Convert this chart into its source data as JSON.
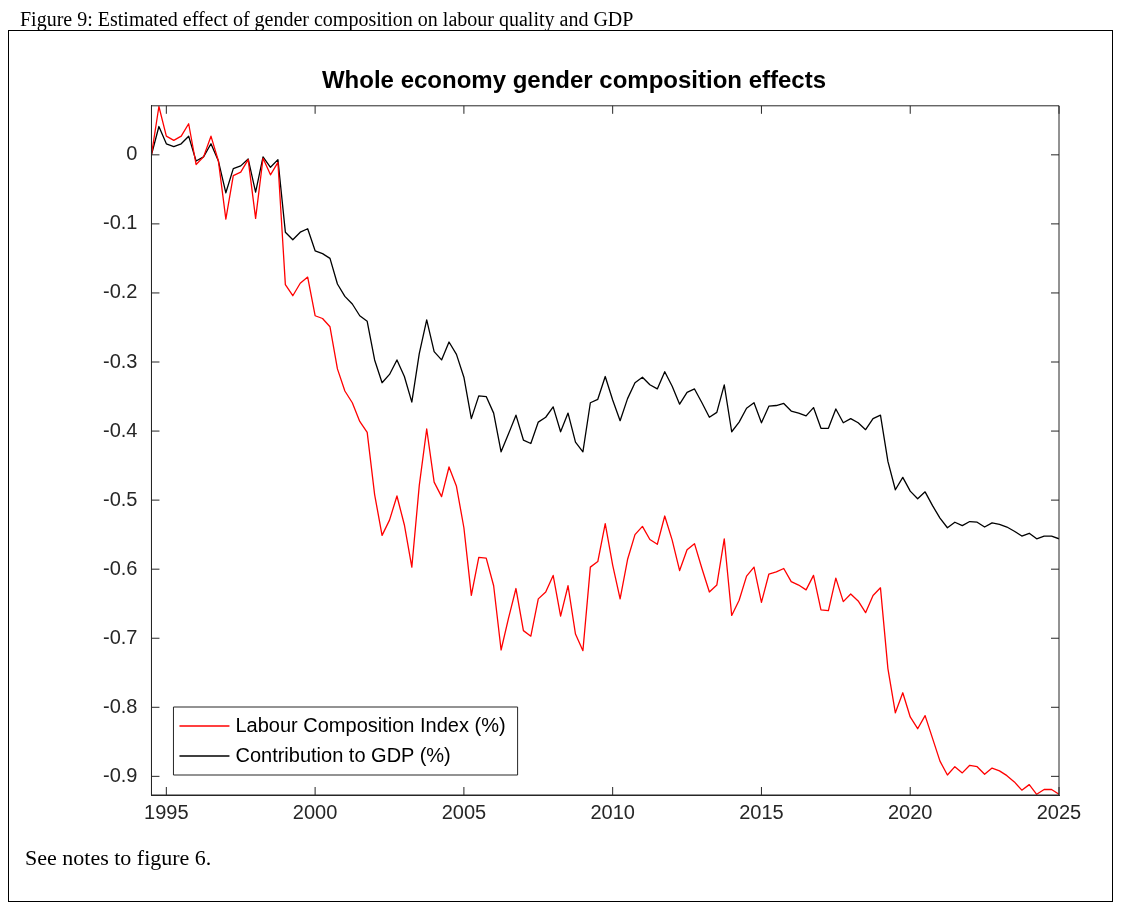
{
  "chart_data": {
    "type": "line",
    "title": "Whole economy gender composition effects",
    "annotations": [
      "Figure 9: Estimated effect of gender composition on labour quality and GDP",
      "See notes to figure 6."
    ],
    "x": [
      1994.5,
      1994.75,
      1995,
      1995.25,
      1995.5,
      1995.75,
      1996,
      1996.25,
      1996.5,
      1996.75,
      1997,
      1997.25,
      1997.5,
      1997.75,
      1998,
      1998.25,
      1998.5,
      1998.75,
      1999,
      1999.25,
      1999.5,
      1999.75,
      2000,
      2000.25,
      2000.5,
      2000.75,
      2001,
      2001.25,
      2001.5,
      2001.75,
      2002,
      2002.25,
      2002.5,
      2002.75,
      2003,
      2003.25,
      2003.5,
      2003.75,
      2004,
      2004.25,
      2004.5,
      2004.75,
      2005,
      2005.25,
      2005.5,
      2005.75,
      2006,
      2006.25,
      2006.5,
      2006.75,
      2007,
      2007.25,
      2007.5,
      2007.75,
      2008,
      2008.25,
      2008.5,
      2008.75,
      2009,
      2009.25,
      2009.5,
      2009.75,
      2010,
      2010.25,
      2010.5,
      2010.75,
      2011,
      2011.25,
      2011.5,
      2011.75,
      2012,
      2012.25,
      2012.5,
      2012.75,
      2013,
      2013.25,
      2013.5,
      2013.75,
      2014,
      2014.25,
      2014.5,
      2014.75,
      2015,
      2015.25,
      2015.5,
      2015.75,
      2016,
      2016.25,
      2016.5,
      2016.75,
      2017,
      2017.25,
      2017.5,
      2017.75,
      2018,
      2018.25,
      2018.5,
      2018.75,
      2019,
      2019.25,
      2019.5,
      2019.75,
      2020,
      2020.25,
      2020.5,
      2020.75,
      2021,
      2021.25,
      2021.5,
      2021.75,
      2022,
      2022.25,
      2022.5,
      2022.75,
      2023,
      2023.25,
      2023.5,
      2023.75,
      2024,
      2024.25,
      2024.5,
      2024.75,
      2025
    ],
    "series": [
      {
        "name": "Labour Composition Index (%)",
        "color": "#ff0000",
        "values": [
          0,
          0.07,
          0.027,
          0.021,
          0.027,
          0.045,
          -0.014,
          -0.003,
          0.027,
          -0.009,
          -0.093,
          -0.03,
          -0.025,
          -0.007,
          -0.092,
          -0.005,
          -0.029,
          -0.011,
          -0.188,
          -0.204,
          -0.186,
          -0.177,
          -0.233,
          -0.237,
          -0.249,
          -0.31,
          -0.342,
          -0.359,
          -0.386,
          -0.402,
          -0.492,
          -0.551,
          -0.529,
          -0.494,
          -0.536,
          -0.597,
          -0.479,
          -0.397,
          -0.474,
          -0.495,
          -0.452,
          -0.48,
          -0.54,
          -0.638,
          -0.583,
          -0.584,
          -0.624,
          -0.717,
          -0.671,
          -0.628,
          -0.689,
          -0.697,
          -0.643,
          -0.633,
          -0.609,
          -0.668,
          -0.624,
          -0.694,
          -0.718,
          -0.597,
          -0.589,
          -0.534,
          -0.594,
          -0.643,
          -0.586,
          -0.55,
          -0.538,
          -0.557,
          -0.564,
          -0.523,
          -0.558,
          -0.602,
          -0.572,
          -0.563,
          -0.599,
          -0.633,
          -0.623,
          -0.556,
          -0.667,
          -0.645,
          -0.61,
          -0.597,
          -0.648,
          -0.607,
          -0.604,
          -0.599,
          -0.618,
          -0.623,
          -0.63,
          -0.609,
          -0.659,
          -0.66,
          -0.613,
          -0.647,
          -0.636,
          -0.646,
          -0.663,
          -0.638,
          -0.627,
          -0.744,
          -0.808,
          -0.779,
          -0.814,
          -0.831,
          -0.812,
          -0.845,
          -0.878,
          -0.898,
          -0.886,
          -0.895,
          -0.884,
          -0.886,
          -0.897,
          -0.888,
          -0.892,
          -0.899,
          -0.908,
          -0.92,
          -0.912,
          -0.926,
          -0.919,
          -0.919,
          -0.926
        ]
      },
      {
        "name": "Contribution to GDP (%)",
        "color": "#000000",
        "values": [
          0,
          0.041,
          0.016,
          0.012,
          0.016,
          0.027,
          -0.009,
          -0.003,
          0.016,
          -0.009,
          -0.055,
          -0.02,
          -0.016,
          -0.006,
          -0.054,
          -0.003,
          -0.018,
          -0.007,
          -0.112,
          -0.123,
          -0.112,
          -0.107,
          -0.139,
          -0.143,
          -0.15,
          -0.187,
          -0.205,
          -0.216,
          -0.233,
          -0.241,
          -0.297,
          -0.33,
          -0.318,
          -0.297,
          -0.321,
          -0.358,
          -0.288,
          -0.239,
          -0.285,
          -0.297,
          -0.271,
          -0.289,
          -0.322,
          -0.382,
          -0.349,
          -0.35,
          -0.374,
          -0.43,
          -0.404,
          -0.377,
          -0.413,
          -0.418,
          -0.387,
          -0.38,
          -0.365,
          -0.401,
          -0.374,
          -0.416,
          -0.43,
          -0.359,
          -0.354,
          -0.321,
          -0.355,
          -0.385,
          -0.353,
          -0.33,
          -0.322,
          -0.333,
          -0.339,
          -0.314,
          -0.335,
          -0.361,
          -0.344,
          -0.339,
          -0.359,
          -0.38,
          -0.373,
          -0.333,
          -0.401,
          -0.387,
          -0.367,
          -0.359,
          -0.388,
          -0.364,
          -0.363,
          -0.36,
          -0.371,
          -0.374,
          -0.378,
          -0.366,
          -0.396,
          -0.396,
          -0.368,
          -0.388,
          -0.382,
          -0.388,
          -0.398,
          -0.382,
          -0.377,
          -0.444,
          -0.485,
          -0.467,
          -0.487,
          -0.498,
          -0.488,
          -0.508,
          -0.526,
          -0.54,
          -0.532,
          -0.537,
          -0.531,
          -0.532,
          -0.539,
          -0.533,
          -0.535,
          -0.539,
          -0.545,
          -0.552,
          -0.548,
          -0.556,
          -0.552,
          -0.552,
          -0.556
        ]
      }
    ],
    "xlim": [
      1994.5,
      2025
    ],
    "xticks": [
      1995,
      2000,
      2005,
      2010,
      2015,
      2020,
      2025
    ],
    "ylim": [
      -0.927,
      0.071
    ],
    "yticks": [
      0,
      -0.1,
      -0.2,
      -0.3,
      -0.4,
      -0.5,
      -0.6,
      -0.7,
      -0.8,
      -0.9
    ],
    "grid": false,
    "legend": "bottom left",
    "marker": "none",
    "line_style": "solid"
  }
}
